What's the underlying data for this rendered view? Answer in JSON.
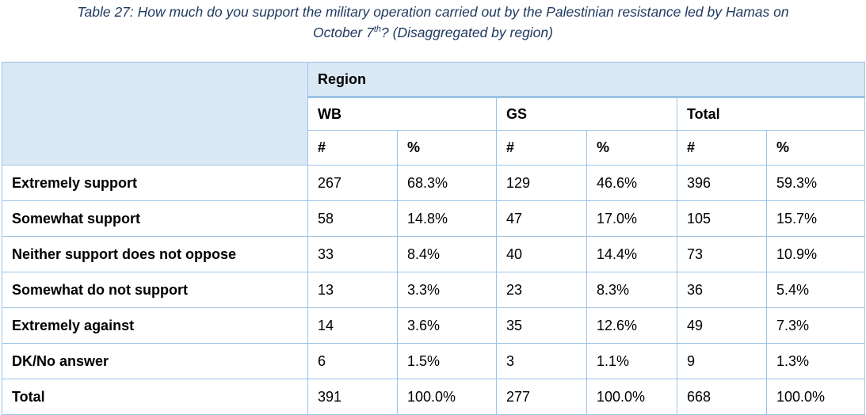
{
  "caption": {
    "part1": "Table 27: How much do you support the military operation carried out by the Palestinian resistance led by Hamas on",
    "part2_pre": "October 7",
    "part2_sup": "th",
    "part2_post": "? (Disaggregated by region)"
  },
  "table": {
    "region_label": "Region",
    "groups": [
      "WB",
      "GS",
      "Total"
    ],
    "col_symbols": [
      "#",
      "%",
      "#",
      "%",
      "#",
      "%"
    ],
    "rows": [
      {
        "label": "Extremely support",
        "cells": [
          "267",
          "68.3%",
          "129",
          "46.6%",
          "396",
          "59.3%"
        ]
      },
      {
        "label": "Somewhat support",
        "cells": [
          "58",
          "14.8%",
          "47",
          "17.0%",
          "105",
          "15.7%"
        ]
      },
      {
        "label": "Neither support does not oppose",
        "cells": [
          "33",
          "8.4%",
          "40",
          "14.4%",
          "73",
          "10.9%"
        ]
      },
      {
        "label": "Somewhat do not support",
        "cells": [
          "13",
          "3.3%",
          "23",
          "8.3%",
          "36",
          "5.4%"
        ]
      },
      {
        "label": "Extremely against",
        "cells": [
          "14",
          "3.6%",
          "35",
          "12.6%",
          "49",
          "7.3%"
        ]
      },
      {
        "label": "DK/No answer",
        "cells": [
          "6",
          "1.5%",
          "3",
          "1.1%",
          "9",
          "1.3%"
        ]
      },
      {
        "label": "Total",
        "cells": [
          "391",
          "100.0%",
          "277",
          "100.0%",
          "668",
          "100.0%"
        ]
      }
    ]
  },
  "colors": {
    "header_fill": "#dae8f6",
    "border": "#9dc3e6",
    "caption_text": "#1f3a60"
  }
}
